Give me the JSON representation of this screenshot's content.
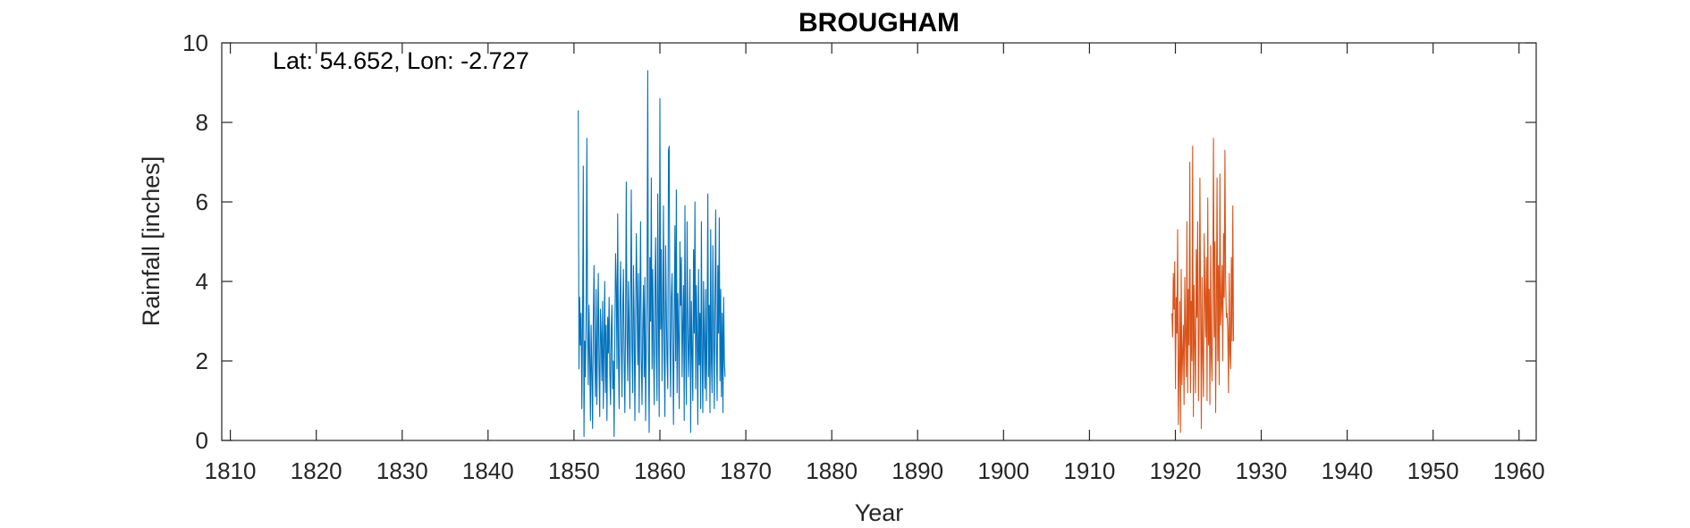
{
  "chart_data": {
    "type": "line",
    "title": "BROUGHAM",
    "annotation": "Lat: 54.652, Lon: -2.727",
    "xlabel": "Year",
    "ylabel": "Rainfall [inches]",
    "xlim": [
      1809,
      1962
    ],
    "ylim": [
      0,
      10
    ],
    "xticks": [
      1810,
      1820,
      1830,
      1840,
      1850,
      1860,
      1870,
      1880,
      1890,
      1900,
      1910,
      1920,
      1930,
      1940,
      1950,
      1960
    ],
    "yticks": [
      0,
      2,
      4,
      6,
      8,
      10
    ],
    "grid": false,
    "series": [
      {
        "color": "#0072BD",
        "x_start": 1850.5,
        "x_step": 0.08333,
        "values": [
          8.3,
          1.8,
          3.6,
          2.4,
          3.2,
          0.8,
          2.9,
          6.9,
          0.1,
          2.5,
          1.6,
          3.2,
          7.6,
          2.8,
          1.4,
          3.4,
          2.1,
          0.5,
          2.9,
          1.7,
          0.3,
          3.0,
          4.4,
          2.2,
          1.1,
          3.8,
          0.9,
          2.6,
          4.2,
          1.9,
          0.6,
          3.3,
          2.7,
          1.5,
          3.5,
          0.8,
          2.4,
          4.0,
          1.2,
          2.9,
          0.5,
          3.1,
          2.2,
          3.6,
          1.7,
          0.9,
          2.8,
          3.4,
          1.3,
          2.0,
          0.1,
          2.6,
          4.7,
          3.9,
          1.8,
          5.7,
          2.2,
          0.8,
          3.4,
          4.5,
          2.5,
          1.1,
          3.3,
          4.3,
          2.1,
          0.7,
          3.0,
          6.5,
          2.6,
          1.5,
          4.0,
          2.9,
          0.8,
          3.6,
          6.3,
          2.3,
          1.2,
          4.4,
          3.1,
          0.5,
          2.7,
          5.2,
          3.8,
          1.9,
          4.2,
          0.7,
          3.3,
          5.5,
          2.0,
          0.9,
          2.8,
          3.9,
          1.6,
          4.1,
          0.5,
          2.4,
          3.6,
          9.3,
          2.2,
          0.2,
          4.6,
          3.0,
          6.6,
          1.8,
          4.3,
          2.5,
          0.9,
          3.8,
          5.1,
          2.2,
          1.0,
          6.2,
          3.1,
          0.6,
          8.6,
          2.8,
          4.8,
          1.5,
          3.2,
          5.9,
          2.1,
          0.6,
          4.9,
          3.3,
          2.0,
          1.3,
          7.3,
          7.4,
          2.5,
          1.1,
          3.6,
          4.2,
          2.4,
          0.4,
          3.1,
          5.4,
          2.0,
          6.3,
          1.2,
          3.7,
          2.6,
          0.8,
          5.0,
          3.4,
          4.6,
          1.6,
          2.9,
          3.9,
          0.5,
          5.9,
          2.3,
          0.9,
          5.5,
          3.0,
          1.6,
          2.5,
          4.3,
          0.2,
          3.5,
          2.2,
          1.0,
          4.8,
          2.7,
          6.0,
          1.3,
          3.9,
          2.6,
          0.4,
          4.3,
          1.9,
          3.2,
          0.8,
          5.5,
          2.1,
          0.7,
          4.0,
          2.5,
          1.3,
          3.8,
          1.0,
          2.9,
          6.2,
          1.6,
          3.4,
          0.7,
          5.3,
          2.0,
          1.2,
          4.9,
          2.8,
          0.8,
          3.6,
          5.8,
          2.3,
          1.0,
          4.4,
          2.7,
          5.6,
          1.5,
          3.8,
          1.1,
          3.2,
          0.7,
          3.6,
          2.0,
          1.6
        ]
      },
      {
        "color": "#D95319",
        "x_start": 1919.6,
        "x_step": 0.08333,
        "values": [
          3.2,
          2.6,
          4.2,
          3.3,
          4.5,
          1.3,
          3.6,
          2.7,
          5.3,
          0.4,
          1.7,
          3.5,
          0.2,
          4.3,
          1.4,
          2.2,
          2.9,
          0.9,
          4.1,
          2.6,
          1.6,
          5.5,
          1.2,
          3.8,
          2.4,
          7.0,
          1.2,
          3.5,
          2.0,
          7.4,
          0.6,
          3.9,
          2.4,
          1.2,
          4.8,
          3.1,
          5.5,
          1.0,
          2.7,
          6.6,
          3.4,
          0.3,
          4.1,
          2.1,
          1.1,
          5.2,
          3.7,
          2.6,
          4.6,
          1.0,
          6.1,
          2.4,
          3.8,
          0.9,
          4.9,
          2.1,
          1.5,
          3.9,
          7.6,
          2.6,
          5.0,
          0.7,
          3.2,
          6.6,
          2.0,
          4.4,
          1.4,
          6.7,
          2.9,
          3.4,
          4.4,
          2.0,
          5.2,
          3.6,
          7.3,
          4.0,
          3.1,
          3.2,
          2.7,
          1.2,
          4.2,
          2.2,
          1.8,
          4.6,
          2.5,
          5.9,
          2.5
        ]
      }
    ]
  }
}
